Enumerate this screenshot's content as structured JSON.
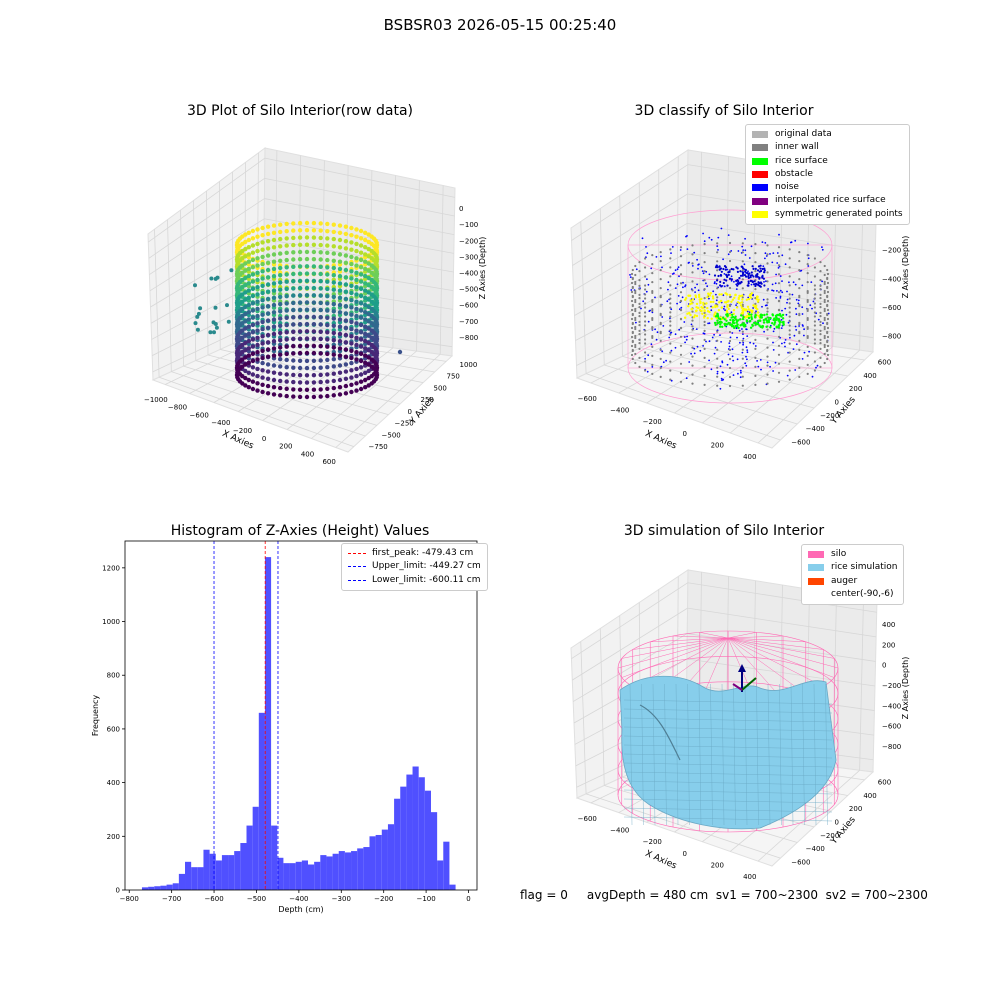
{
  "suptitle": "BSBSR03 2026-05-15 00:25:40",
  "panels": {
    "raw": {
      "title": "3D Plot of Silo Interior(row data)",
      "xlabel": "X Axies",
      "ylabel": "Y Axies",
      "zlabel": "Z Axies (Depth)",
      "xticks": [
        "−1000",
        "−800",
        "−600",
        "−400",
        "−200",
        "0",
        "200",
        "400",
        "600"
      ],
      "yticks": [
        "−750",
        "−500",
        "−250",
        "0",
        "250",
        "500",
        "750",
        "1000"
      ],
      "zticks": [
        "0",
        "−100",
        "−200",
        "−300",
        "−400",
        "−500",
        "−600",
        "−700",
        "−800"
      ],
      "colormap": "viridis"
    },
    "classify": {
      "title": "3D classify of Silo Interior",
      "xlabel": "X Axies",
      "ylabel": "Y Axies",
      "zlabel": "Z Axies (Depth)",
      "xticks": [
        "−600",
        "−400",
        "−200",
        "0",
        "200",
        "400"
      ],
      "yticks": [
        "−600",
        "−400",
        "−200",
        "0",
        "200",
        "400",
        "600"
      ],
      "zticks": [
        "200",
        "0",
        "−200",
        "−400",
        "−600",
        "−800"
      ],
      "legend": [
        {
          "label": "original data",
          "color": "#b3b3b3"
        },
        {
          "label": "inner wall",
          "color": "#808080"
        },
        {
          "label": "rice surface",
          "color": "#00ff00"
        },
        {
          "label": "obstacle",
          "color": "#ff0000"
        },
        {
          "label": "noise",
          "color": "#0000ff"
        },
        {
          "label": "interpolated rice surface",
          "color": "#800080"
        },
        {
          "label": "symmetric generated points",
          "color": "#ffff00"
        }
      ]
    },
    "simulation": {
      "title": "3D simulation of Silo Interior",
      "xlabel": "X Axies",
      "ylabel": "Y Axies",
      "zlabel": "Z Axies (Depth)",
      "xticks": [
        "−600",
        "−400",
        "−200",
        "0",
        "200",
        "400"
      ],
      "yticks": [
        "−600",
        "−400",
        "−200",
        "0",
        "200",
        "400",
        "600"
      ],
      "zticks": [
        "400",
        "200",
        "0",
        "−200",
        "−400",
        "−600",
        "−800"
      ],
      "legend": [
        {
          "label": "silo",
          "color": "#ff69b4"
        },
        {
          "label": "rice simulation",
          "color": "#87ceeb"
        },
        {
          "label": "auger",
          "color": "#ff4500"
        },
        {
          "label": "center(-90,-6)",
          "color": "#ffffff"
        }
      ]
    }
  },
  "chart_data": {
    "type": "bar",
    "title": "Histogram of Z-Axies (Height) Values",
    "xlabel": "Depth (cm)",
    "ylabel": "Frequency",
    "xlim": [
      -810,
      20
    ],
    "ylim": [
      0,
      1300
    ],
    "xticks": [
      -800,
      -700,
      -600,
      -500,
      -400,
      -300,
      -200,
      -100,
      0
    ],
    "yticks": [
      0,
      200,
      400,
      600,
      800,
      1000,
      1200
    ],
    "bar_color": "#5050ff",
    "bin_start": -770,
    "bin_width": 14.5,
    "values": [
      10,
      12,
      14,
      16,
      20,
      25,
      60,
      105,
      85,
      85,
      150,
      135,
      110,
      130,
      130,
      145,
      175,
      240,
      310,
      660,
      1240,
      240,
      120,
      100,
      100,
      105,
      110,
      95,
      105,
      130,
      125,
      135,
      145,
      140,
      145,
      155,
      160,
      200,
      205,
      225,
      245,
      340,
      385,
      430,
      460,
      420,
      370,
      290,
      110,
      180,
      20
    ],
    "lines": [
      {
        "label": "first_peak: -479.43 cm",
        "x": -479.43,
        "color": "#ff0000"
      },
      {
        "label": "Upper_limit: -449.27 cm",
        "x": -449.27,
        "color": "#0000ff"
      },
      {
        "label": "Lower_limit: -600.11 cm",
        "x": -600.11,
        "color": "#0000ff"
      }
    ]
  },
  "footer": "flag = 0     avgDepth = 480 cm  sv1 = 700~2300  sv2 = 700~2300"
}
